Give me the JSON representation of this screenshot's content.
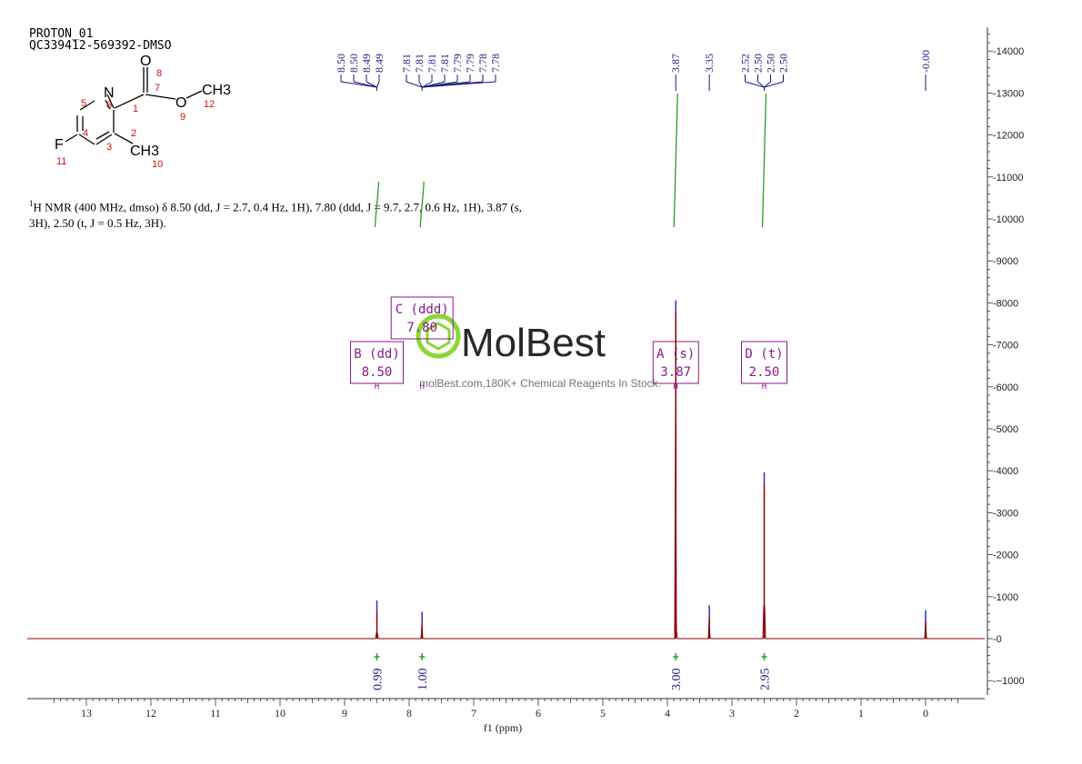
{
  "header": {
    "line1": "PROTON_01",
    "line2": "QC339412-569392-DMSO"
  },
  "description": {
    "sup": "1",
    "text": "H NMR (400 MHz, dmso) δ 8.50 (dd, J = 2.7, 0.4 Hz, 1H), 7.80 (ddd, J = 9.7, 2.7, 0.6 Hz, 1H), 3.87 (s, 3H), 2.50 (t, J = 0.5 Hz, 3H)."
  },
  "structure": {
    "atoms": {
      "N": "N",
      "O_carbonyl": "O",
      "O_ester": "O",
      "CH3_ester": "CH3",
      "CH3_ring": "CH3",
      "F": "F"
    },
    "numbers": [
      "1",
      "2",
      "3",
      "4",
      "5",
      "6",
      "7",
      "8",
      "9",
      "10",
      "11",
      "12"
    ]
  },
  "watermark": {
    "brand": "MolBest",
    "sub": "molBest.com,180K+ Chemical Reagents In Stock."
  },
  "colors": {
    "spectrum": "#8b0000",
    "peak_label": "#1a1a80",
    "integral_curve": "#2a9d2a",
    "box": "#8a1a8a",
    "brand_green": "#7ed321"
  },
  "chart_data": {
    "type": "line",
    "title": "",
    "xlabel": "f1 (ppm)",
    "ylabel": "",
    "xlim": [
      14,
      -1
    ],
    "ylim": [
      -1400,
      14600
    ],
    "x_ticks": [
      13,
      12,
      11,
      10,
      9,
      8,
      7,
      6,
      5,
      4,
      3,
      2,
      1,
      0
    ],
    "y_ticks": [
      14000,
      13000,
      12000,
      11000,
      10000,
      9000,
      8000,
      7000,
      6000,
      5000,
      4000,
      3000,
      2000,
      1000,
      0,
      -1000
    ],
    "peaks": [
      {
        "x": 8.5,
        "y": 650
      },
      {
        "x": 7.8,
        "y": 380
      },
      {
        "x": 3.87,
        "y": 7800
      },
      {
        "x": 3.35,
        "y": 530
      },
      {
        "x": 2.5,
        "y": 3700
      },
      {
        "x": 0.0,
        "y": 420
      }
    ],
    "peak_labels": [
      {
        "group": "8.50 ppm",
        "labels": [
          "8.50",
          "8.50",
          "8.49",
          "8.49"
        ]
      },
      {
        "group": "7.80 ppm",
        "labels": [
          "7.81",
          "7.81",
          "7.81",
          "7.81",
          "7.79",
          "7.79",
          "7.78",
          "7.78"
        ]
      },
      {
        "group": "3.87 ppm",
        "labels": [
          "3.87"
        ]
      },
      {
        "group": "3.35 ppm",
        "labels": [
          "3.35"
        ]
      },
      {
        "group": "2.50 ppm",
        "labels": [
          "2.52",
          "2.50",
          "2.50",
          "2.50"
        ]
      },
      {
        "group": "0.00 ppm",
        "labels": [
          "-0.00"
        ]
      }
    ],
    "multiplets": [
      {
        "letter": "B (dd)",
        "shift": "8.50",
        "x": 8.5
      },
      {
        "letter": "C (ddd)",
        "shift": "7.80",
        "x": 7.8
      },
      {
        "letter": "A (s)",
        "shift": "3.87",
        "x": 3.87
      },
      {
        "letter": "D (t)",
        "shift": "2.50",
        "x": 2.5
      }
    ],
    "integrals": [
      {
        "x": 8.5,
        "value": "0.99"
      },
      {
        "x": 7.8,
        "value": "1.00"
      },
      {
        "x": 3.87,
        "value": "3.00"
      },
      {
        "x": 2.5,
        "value": "2.95"
      }
    ]
  }
}
